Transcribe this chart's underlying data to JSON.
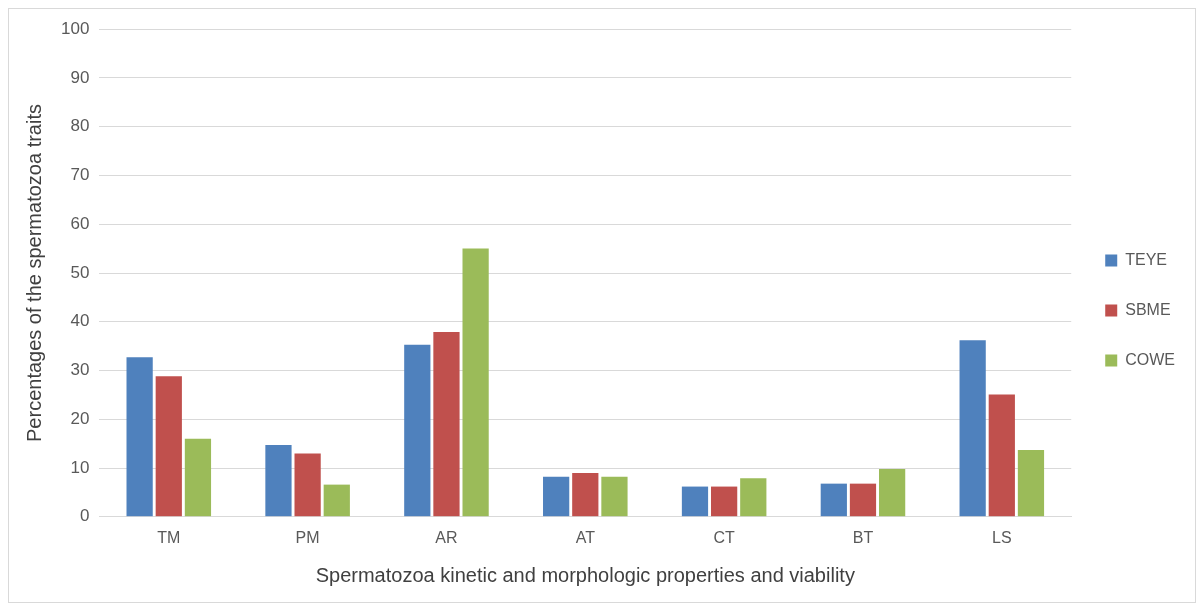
{
  "chart_data": {
    "type": "bar",
    "xlabel": "Spermatozoa kinetic and morphologic properties and viability",
    "ylabel": "Percentages of the spermatozoa traits",
    "categories": [
      "TM",
      "PM",
      "AR",
      "AT",
      "CT",
      "BT",
      "LS"
    ],
    "series": [
      {
        "name": "TEYE",
        "color": "#4f81bd",
        "values": [
          32.7,
          14.7,
          35.3,
          8.2,
          6.2,
          6.8,
          36.2
        ]
      },
      {
        "name": "SBME",
        "color": "#c0504d",
        "values": [
          28.8,
          13.0,
          37.9,
          9.0,
          6.2,
          6.8,
          25.1
        ]
      },
      {
        "name": "COWE",
        "color": "#9bbb59",
        "values": [
          16.0,
          6.6,
          55.0,
          8.2,
          7.9,
          9.8,
          13.7
        ]
      }
    ],
    "ylim": [
      0,
      100
    ],
    "yticks": [
      0,
      10,
      20,
      30,
      40,
      50,
      60,
      70,
      80,
      90,
      100
    ],
    "grid": "y",
    "legend": "right"
  }
}
